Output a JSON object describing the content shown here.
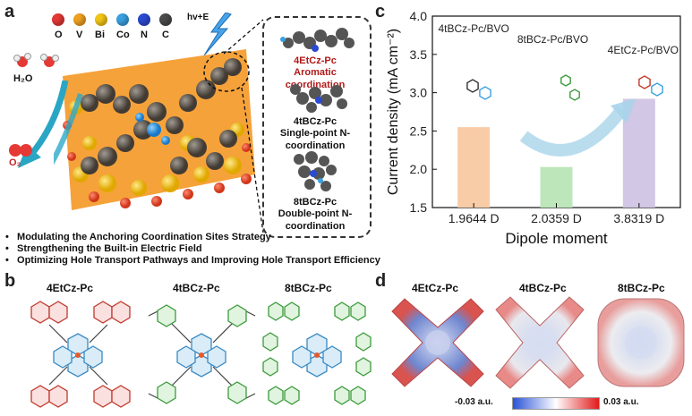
{
  "panels": {
    "a": "a",
    "b": "b",
    "c": "c",
    "d": "d"
  },
  "panel_a": {
    "legend": [
      "O",
      "V",
      "Bi",
      "Co",
      "N",
      "C"
    ],
    "legend_colors": [
      "#e53935",
      "#f0a020",
      "#f2c516",
      "#3aa0e0",
      "#2a4ad0",
      "#4a4a4a"
    ],
    "h2o": "H₂O",
    "o2": "O₂",
    "light": "hv+E",
    "structures": [
      {
        "name": "4EtCz-Pc",
        "desc": "Aromatic coordination"
      },
      {
        "name": "4tBCz-Pc",
        "desc": "Single-point N-coordination"
      },
      {
        "name": "8tBCz-Pc",
        "desc": "Double-point N-coordination"
      }
    ],
    "bullets": [
      "Modulating the Anchoring Coordination Sites Strategy",
      "Strengthening the Built-in Electric Field",
      "Optimizing Hole Transport Pathways and Improving Hole Transport Efficiency"
    ]
  },
  "panel_b": {
    "labels": [
      "4EtCz-Pc",
      "4tBCz-Pc",
      "8tBCz-Pc"
    ]
  },
  "panel_d": {
    "labels": [
      "4EtCz-Pc",
      "4tBCz-Pc",
      "8tBCz-Pc"
    ],
    "scale_min": "-0.03 a.u.",
    "scale_max": "0.03 a.u."
  },
  "chart_data": {
    "type": "bar",
    "categories": [
      "1.9644 D",
      "2.0359 D",
      "3.8319 D"
    ],
    "values": [
      2.55,
      2.03,
      2.92
    ],
    "bar_labels": [
      "4tBCz-Pc/BVO",
      "8tBCz-Pc/BVO",
      "4EtCz-Pc/BVO"
    ],
    "bar_colors": [
      "#f9c9a3",
      "#b9e6b7",
      "#d0c4e3"
    ],
    "xlabel": "Dipole moment",
    "ylabel": "Current density (mA cm⁻²)",
    "ylim": [
      1.5,
      4.0
    ],
    "yticks": [
      "1.5",
      "2.0",
      "2.5",
      "3.0",
      "3.5",
      "4.0"
    ]
  }
}
